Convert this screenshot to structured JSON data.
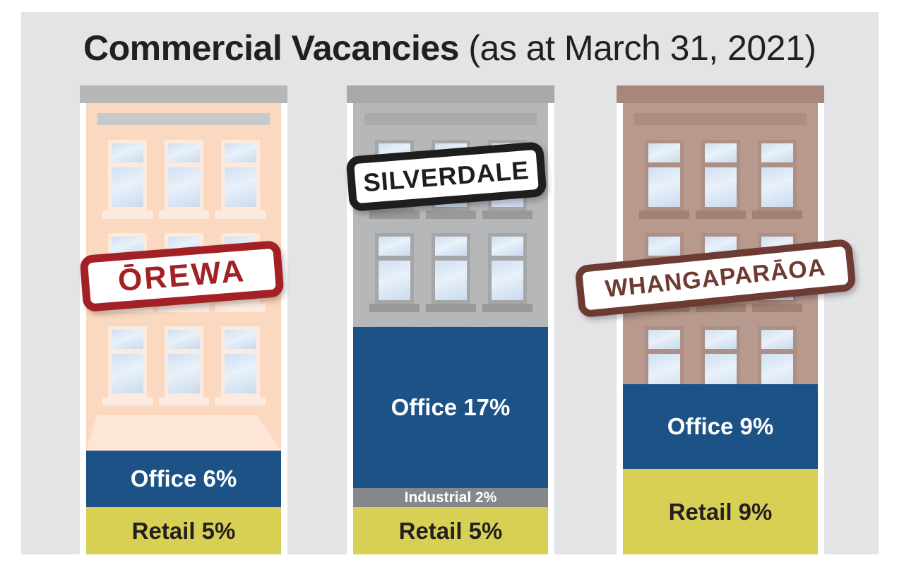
{
  "title": {
    "bold": "Commercial Vacancies",
    "rest": " (as at March 31, 2021)"
  },
  "palette": {
    "canvas_bg": "#e3e4e6",
    "page_bg": "#ffffff",
    "title_text": "#231f20",
    "bands": {
      "office": "#1d5286",
      "industrial": "#85878a",
      "retail": "#d8d054"
    },
    "band_text_light": "#ffffff",
    "band_text_dark": "#231f20",
    "window_glass": [
      "#cfdff2",
      "#e9f1fa",
      "#c9daee"
    ]
  },
  "chart_data": {
    "type": "bar",
    "title": "Commercial Vacancies (as at March 31, 2021)",
    "unit": "%",
    "categories": [
      "ŌREWA",
      "SILVERDALE",
      "WHANGAPARĀOA"
    ],
    "series": [
      {
        "name": "Office",
        "values": [
          6,
          17,
          9
        ],
        "color": "#1d5286"
      },
      {
        "name": "Industrial",
        "values": [
          0,
          2,
          0
        ],
        "color": "#85878a"
      },
      {
        "name": "Retail",
        "values": [
          5,
          5,
          9
        ],
        "color": "#d8d054"
      }
    ],
    "value_labels": [
      [
        "Office 6%",
        "Retail 5%"
      ],
      [
        "Office 17%",
        "Industrial 2%",
        "Retail 5%"
      ],
      [
        "Office 9%",
        "Retail 9%"
      ]
    ],
    "legend_position": "none",
    "grid": false,
    "notes": "Percentages drawn as stacked bands at the base of each building, ~13.4px per percent"
  },
  "buildings": [
    {
      "stamp": {
        "text": "ŌREWA",
        "color": "#a32025"
      },
      "facade": {
        "body": "#fbd9c1",
        "roof": "#b5b7b9",
        "stripe": "#c7c9cb",
        "window_frame": "#fceadf",
        "sill": "#fceadf",
        "awning": "#fde6d8"
      },
      "bands": [
        {
          "type": "office",
          "label": "Office 6%",
          "value": 6
        },
        {
          "type": "retail",
          "label": "Retail 5%",
          "value": 5
        }
      ]
    },
    {
      "stamp": {
        "text": "SILVERDALE",
        "color": "#1e1e1e"
      },
      "facade": {
        "body": "#b5b7b9",
        "roof": "#a6a8aa",
        "stripe": "#a8aaac",
        "window_frame": "#a4a6a8",
        "sill": "#97999b",
        "awning": null
      },
      "bands": [
        {
          "type": "office",
          "label": "Office 17%",
          "value": 17
        },
        {
          "type": "industrial",
          "label": "Industrial 2%",
          "value": 2
        },
        {
          "type": "retail",
          "label": "Retail 5%",
          "value": 5
        }
      ]
    },
    {
      "stamp": {
        "text": "WHANGAPARĀOA",
        "color": "#6d3b32"
      },
      "facade": {
        "body": "#b7998e",
        "roof": "#a9867c",
        "stripe": "#ab8d81",
        "window_frame": "#ad8f83",
        "sill": "#a08174",
        "awning": null
      },
      "bands": [
        {
          "type": "office",
          "label": "Office 9%",
          "value": 9
        },
        {
          "type": "retail",
          "label": "Retail 9%",
          "value": 9
        }
      ]
    }
  ]
}
